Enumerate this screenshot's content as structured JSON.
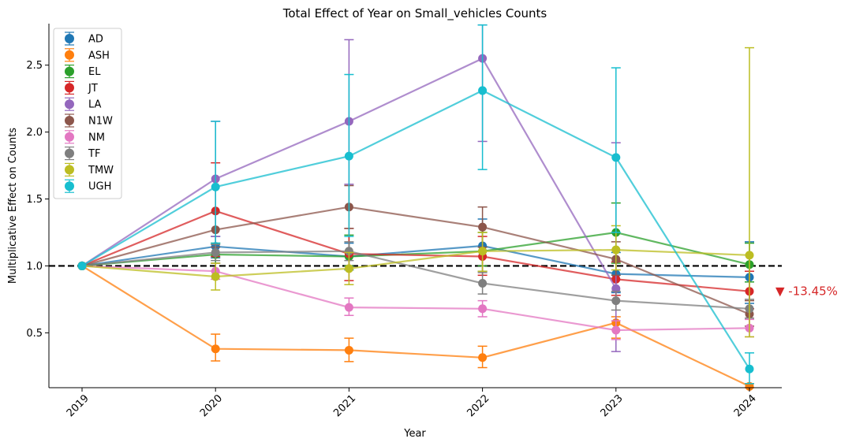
{
  "chart_data": {
    "type": "line",
    "title": "Total Effect of Year on Small_vehicles Counts",
    "xlabel": "Year",
    "ylabel": "Multiplicative Effect on Counts",
    "categories": [
      "2019",
      "2020",
      "2021",
      "2022",
      "2023",
      "2024"
    ],
    "ylim": [
      0.09,
      2.81
    ],
    "yticks": [
      0.5,
      1.0,
      1.5,
      2.0,
      2.5
    ],
    "ytick_labels": [
      "0.5",
      "1.0",
      "1.5",
      "2.0",
      "2.5"
    ],
    "reference_line": 1.0,
    "legend_position": "upper-left",
    "series": [
      {
        "name": "AD",
        "color": "#1f77b4",
        "values": [
          1.0,
          1.145,
          1.07,
          1.15,
          0.94,
          0.915
        ],
        "err_low": [
          1.0,
          1.06,
          0.97,
          0.96,
          0.8,
          0.72
        ],
        "err_high": [
          1.0,
          1.22,
          1.17,
          1.35,
          1.1,
          1.18
        ]
      },
      {
        "name": "ASH",
        "color": "#ff7f0e",
        "values": [
          1.0,
          0.38,
          0.37,
          0.315,
          0.575,
          0.1
        ],
        "err_low": [
          1.0,
          0.29,
          0.285,
          0.24,
          0.46,
          0.09
        ],
        "err_high": [
          1.0,
          0.49,
          0.46,
          0.4,
          0.62,
          0.12
        ]
      },
      {
        "name": "EL",
        "color": "#2ca02c",
        "values": [
          1.0,
          1.085,
          1.07,
          1.11,
          1.25,
          1.01
        ],
        "err_low": [
          1.0,
          1.02,
          1.0,
          1.0,
          1.02,
          0.88
        ],
        "err_high": [
          1.0,
          1.17,
          1.23,
          1.25,
          1.47,
          1.17
        ]
      },
      {
        "name": "JT",
        "color": "#d62728",
        "values": [
          1.0,
          1.41,
          1.09,
          1.07,
          0.9,
          0.81
        ],
        "err_low": [
          1.0,
          1.07,
          0.89,
          0.93,
          0.78,
          0.68
        ],
        "err_high": [
          1.0,
          1.77,
          1.28,
          1.22,
          1.03,
          0.96
        ]
      },
      {
        "name": "LA",
        "color": "#9467bd",
        "values": [
          1.0,
          1.65,
          2.08,
          2.55,
          0.83,
          null
        ],
        "err_low": [
          1.0,
          1.22,
          1.61,
          1.93,
          0.36,
          null
        ],
        "err_high": [
          1.0,
          2.08,
          2.69,
          2.8,
          1.92,
          null
        ]
      },
      {
        "name": "N1W",
        "color": "#8c564b",
        "values": [
          1.0,
          1.27,
          1.44,
          1.29,
          1.05,
          0.64
        ],
        "err_low": [
          1.0,
          1.14,
          1.28,
          1.14,
          0.93,
          0.55
        ],
        "err_high": [
          1.0,
          1.4,
          1.6,
          1.44,
          1.18,
          0.74
        ]
      },
      {
        "name": "NM",
        "color": "#e377c2",
        "values": [
          1.0,
          0.96,
          0.69,
          0.68,
          0.52,
          0.535
        ],
        "err_low": [
          1.0,
          0.9,
          0.63,
          0.62,
          0.45,
          0.47
        ],
        "err_high": [
          1.0,
          1.02,
          0.76,
          0.74,
          0.59,
          0.6
        ]
      },
      {
        "name": "TF",
        "color": "#7f7f7f",
        "values": [
          1.0,
          1.1,
          1.11,
          0.87,
          0.74,
          0.68
        ],
        "err_low": [
          1.0,
          1.04,
          1.04,
          0.79,
          0.67,
          0.61
        ],
        "err_high": [
          1.0,
          1.16,
          1.18,
          0.95,
          0.81,
          0.75
        ]
      },
      {
        "name": "TMW",
        "color": "#bcbd22",
        "values": [
          1.0,
          0.92,
          0.98,
          1.11,
          1.12,
          1.08
        ],
        "err_low": [
          1.0,
          0.82,
          0.86,
          0.96,
          0.97,
          0.47
        ],
        "err_high": [
          1.0,
          1.02,
          1.1,
          1.25,
          1.3,
          2.63
        ]
      },
      {
        "name": "UGH",
        "color": "#17becf",
        "values": [
          1.0,
          1.59,
          1.82,
          2.31,
          1.81,
          0.23
        ],
        "err_low": [
          1.0,
          1.17,
          1.22,
          1.72,
          1.25,
          0.12
        ],
        "err_high": [
          1.0,
          2.08,
          2.43,
          2.8,
          2.48,
          0.35
        ]
      }
    ],
    "annotation": {
      "text": "▼ -13.45%",
      "color": "#d62728",
      "y": 0.81
    }
  }
}
